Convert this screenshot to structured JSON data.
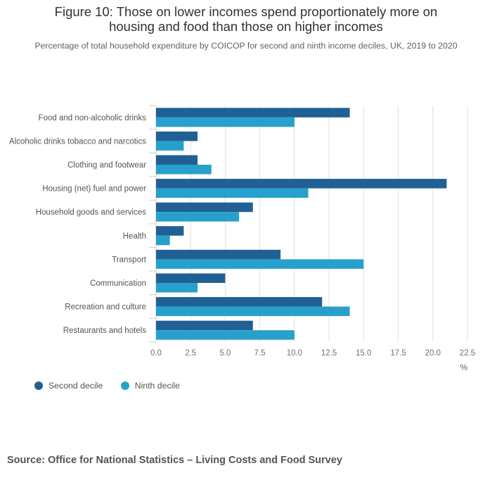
{
  "header": {
    "title_line1": "Figure 10: Those on lower incomes spend proportionately more on",
    "title_line2": "housing and food than those on higher incomes",
    "subtitle": "Percentage of total household expenditure by COICOP for second and ninth income deciles, UK, 2019 to 2020"
  },
  "chart_data": {
    "type": "bar",
    "orientation": "horizontal",
    "title": "Figure 10: Those on lower incomes spend proportionately more on housing and food than those on higher incomes",
    "subtitle": "Percentage of total household expenditure by COICOP for second and ninth income deciles, UK, 2019 to 2020",
    "categories": [
      "Food and non-alcoholic drinks",
      "Alcoholic drinks tobacco and narcotics",
      "Clothing and footwear",
      "Housing (net) fuel and power",
      "Household goods and services",
      "Health",
      "Transport",
      "Communication",
      "Recreation and culture",
      "Restaurants and hotels"
    ],
    "series": [
      {
        "name": "Second decile",
        "color": "#206095",
        "values": [
          14,
          3,
          3,
          21,
          7,
          2,
          9,
          5,
          12,
          7
        ]
      },
      {
        "name": "Ninth decile",
        "color": "#27a0cc",
        "values": [
          10,
          2,
          4,
          11,
          6,
          1,
          15,
          3,
          14,
          10
        ]
      }
    ],
    "xlim": [
      0,
      22.5
    ],
    "xticks": [
      "0.0",
      "2.5",
      "5.0",
      "7.5",
      "10.0",
      "12.5",
      "15.0",
      "17.5",
      "20.0",
      "22.5"
    ],
    "xlabel": "%",
    "ylabel": "",
    "grid": true,
    "legend_position": "bottom-left"
  },
  "footer": {
    "source": "Source: Office for National Statistics – Living Costs and Food Survey"
  }
}
